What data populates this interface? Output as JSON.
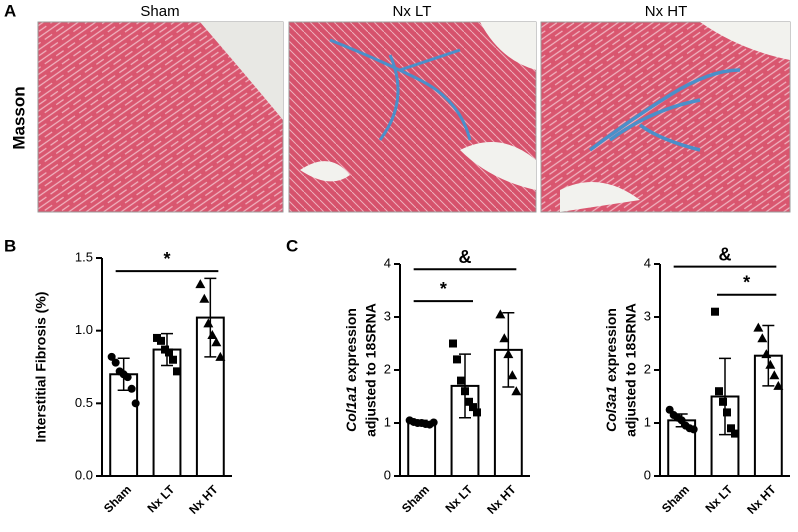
{
  "panel_labels": [
    "A",
    "B",
    "C"
  ],
  "image_row_label": "Masson",
  "image_columns": [
    "Sham",
    "Nx LT",
    "Nx HT"
  ],
  "chart_data": [
    {
      "type": "bar",
      "ylabel": "Interstitial Fibrosis (%)",
      "color": "#ffffff",
      "categories": [
        "Sham",
        "Nx LT",
        "Nx HT"
      ],
      "values": [
        0.7,
        0.87,
        1.09
      ],
      "errors": [
        0.11,
        0.11,
        0.27
      ],
      "markers": [
        "circle",
        "square",
        "triangle"
      ],
      "points": [
        [
          0.82,
          0.78,
          0.72,
          0.7,
          0.68,
          0.6,
          0.5
        ],
        [
          0.95,
          0.93,
          0.87,
          0.85,
          0.8,
          0.72
        ],
        [
          1.32,
          1.22,
          1.05,
          0.97,
          0.92,
          0.82
        ]
      ],
      "ylim": [
        0,
        1.5
      ],
      "yticks": [
        {
          "value": 0,
          "label": "0.0"
        },
        {
          "value": 0.5,
          "label": "0.5"
        },
        {
          "value": 1,
          "label": "1.0"
        },
        {
          "value": 1.5,
          "label": "1.5"
        }
      ],
      "annotations": [
        {
          "from": 0,
          "to": 2,
          "y": 1.41,
          "label": "*"
        }
      ]
    },
    {
      "type": "bar",
      "ylabel_italic": "Col1a1",
      "ylabel": "expression",
      "ylabel2": "adjusted to 18SRNA",
      "color": "#ffffff",
      "categories": [
        "Sham",
        "Nx LT",
        "Nx HT"
      ],
      "values": [
        1.0,
        1.7,
        2.38
      ],
      "errors": [
        0.05,
        0.6,
        0.7
      ],
      "markers": [
        "circle",
        "square",
        "triangle"
      ],
      "points": [
        [
          1.05,
          1.02,
          1.0,
          1.0,
          0.98,
          0.97,
          1.01
        ],
        [
          2.5,
          2.2,
          1.8,
          1.6,
          1.4,
          1.3,
          1.2
        ],
        [
          3.05,
          2.6,
          2.3,
          1.9,
          1.6
        ]
      ],
      "ylim": [
        0,
        4
      ],
      "yticks": [
        0,
        1,
        2,
        3,
        4
      ],
      "annotations": [
        {
          "from": 0,
          "to": 2,
          "y": 3.9,
          "label": "&"
        },
        {
          "from": 0,
          "to": 1,
          "y": 3.3,
          "label": "*"
        }
      ]
    },
    {
      "type": "bar",
      "ylabel_italic": "Col3a1",
      "ylabel": "expression",
      "ylabel2": "adjusted to 18SRNA",
      "color": "#ffffff",
      "categories": [
        "Sham",
        "Nx LT",
        "Nx HT"
      ],
      "values": [
        1.05,
        1.5,
        2.27
      ],
      "errors": [
        0.12,
        0.72,
        0.57
      ],
      "markers": [
        "circle",
        "square",
        "triangle"
      ],
      "points": [
        [
          1.25,
          1.15,
          1.1,
          1.05,
          0.95,
          0.9,
          0.88
        ],
        [
          3.1,
          1.6,
          1.4,
          1.2,
          0.9,
          0.8
        ],
        [
          2.8,
          2.6,
          2.3,
          2.1,
          1.9,
          1.7
        ]
      ],
      "ylim": [
        0,
        4
      ],
      "yticks": [
        0,
        1,
        2,
        3,
        4
      ],
      "annotations": [
        {
          "from": 0,
          "to": 2,
          "y": 3.95,
          "label": "&"
        },
        {
          "from": 1,
          "to": 2,
          "y": 3.42,
          "label": "*"
        }
      ]
    }
  ]
}
